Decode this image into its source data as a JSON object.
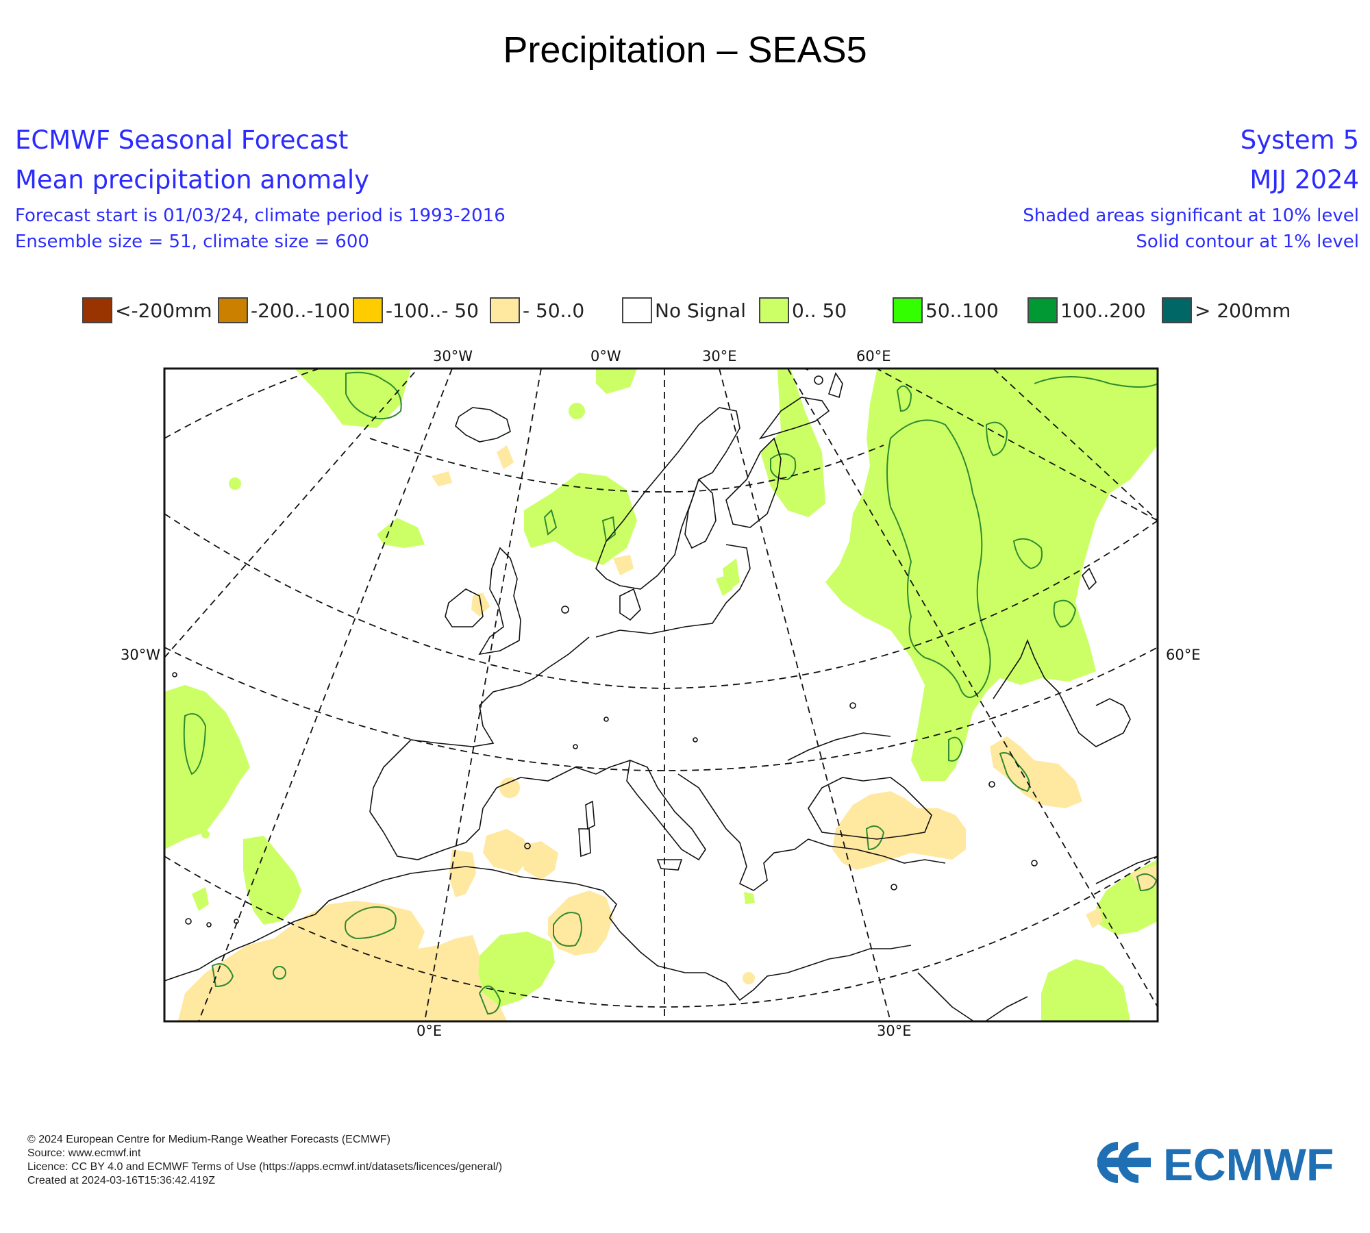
{
  "title": "Precipitation – SEAS5",
  "header": {
    "left_line1": "ECMWF Seasonal Forecast",
    "left_line2": "Mean precipitation anomaly",
    "left_line3": "Forecast start is 01/03/24, climate period is 1993-2016",
    "left_line4": "Ensemble size = 51, climate size = 600",
    "right_line1": "System 5",
    "right_line2": "MJJ 2024",
    "right_line3": "Shaded areas significant at 10% level",
    "right_line4": "Solid contour at 1% level"
  },
  "legend": [
    {
      "label": "<-200mm",
      "color": "#993300"
    },
    {
      "label": "-200..-100",
      "color": "#cc8000"
    },
    {
      "label": "-100..- 50",
      "color": "#ffcc00"
    },
    {
      "label": "- 50..0",
      "color": "#ffe8a0"
    },
    {
      "label": "No Signal",
      "color": "#ffffff"
    },
    {
      "label": "0.. 50",
      "color": "#ccff66"
    },
    {
      "label": "50..100",
      "color": "#33ff00"
    },
    {
      "label": "100..200",
      "color": "#009933"
    },
    {
      "label": "> 200mm",
      "color": "#006666"
    }
  ],
  "axes": {
    "top": [
      "30°W",
      "0°W",
      "30°E",
      "60°E"
    ],
    "bottom": [
      "0°E",
      "30°E"
    ],
    "left": "30°W",
    "right": "60°E"
  },
  "colors": {
    "positive_anomaly": "#ccff66",
    "negative_anomaly": "#ffe8a0",
    "contour": "#2e8b2e",
    "header_text": "#2b2bff",
    "logo": "#1f6fb4"
  },
  "footer": {
    "line1": "© 2024 European Centre for Medium-Range Weather Forecasts (ECMWF)",
    "line2": "Source: www.ecmwf.int",
    "line3": "Licence: CC BY 4.0 and ECMWF Terms of Use (https://apps.ecmwf.int/datasets/licences/general/)",
    "line4": "Created at 2024-03-16T15:36:42.419Z"
  },
  "logo_text": "ECMWF"
}
